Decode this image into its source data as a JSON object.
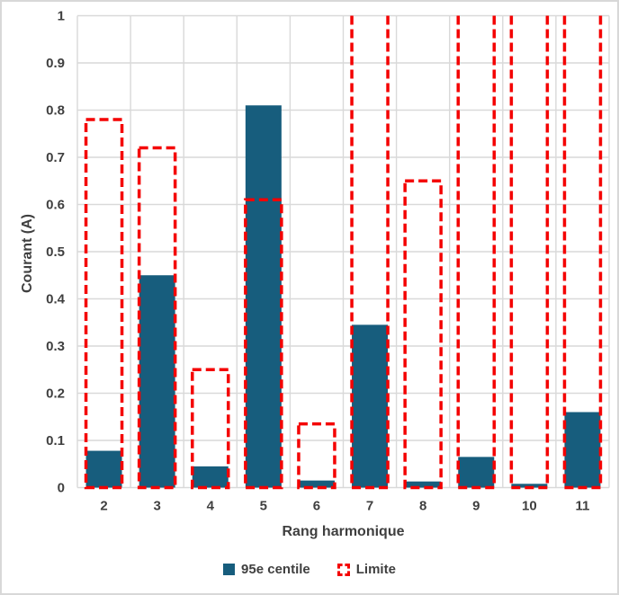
{
  "chart_data": {
    "type": "bar",
    "title": "",
    "xlabel": "Rang harmonique",
    "ylabel": "Courant (A)",
    "categories": [
      "2",
      "3",
      "4",
      "5",
      "6",
      "7",
      "8",
      "9",
      "10",
      "11"
    ],
    "series": [
      {
        "name": "95e centile",
        "style": "solid-fill",
        "color": "#175D7D",
        "values": [
          0.078,
          0.45,
          0.045,
          0.81,
          0.015,
          0.345,
          0.013,
          0.065,
          0.008,
          0.16
        ]
      },
      {
        "name": "Limite",
        "style": "dashed-outline",
        "color": "#F40000",
        "values": [
          0.78,
          0.72,
          0.25,
          0.61,
          0.135,
          1.0,
          0.65,
          1.0,
          1.0,
          1.0
        ],
        "exceeds_axis_max": [
          false,
          false,
          false,
          false,
          false,
          true,
          false,
          true,
          true,
          true
        ],
        "note": "Limite bars for ranks 7, 9, 10 and 11 extend above the y-axis maximum and are clipped at the top of the plot (no top edge drawn)."
      }
    ],
    "ylim": [
      0,
      1
    ],
    "ytick_step": 0.1,
    "ytick_labels": [
      "0",
      "0.1",
      "0.2",
      "0.3",
      "0.4",
      "0.5",
      "0.6",
      "0.7",
      "0.8",
      "0.9",
      "1"
    ],
    "grid": "horizontal and vertical category-boundary gridlines",
    "legend_position": "bottom-center"
  },
  "colors": {
    "bar_fill": "#175D7D",
    "limit_stroke": "#F40000",
    "gridline": "#D9D9D9",
    "text": "#3F3F3F",
    "background": "#FFFFFF",
    "frame_border": "#D8D8D8"
  }
}
